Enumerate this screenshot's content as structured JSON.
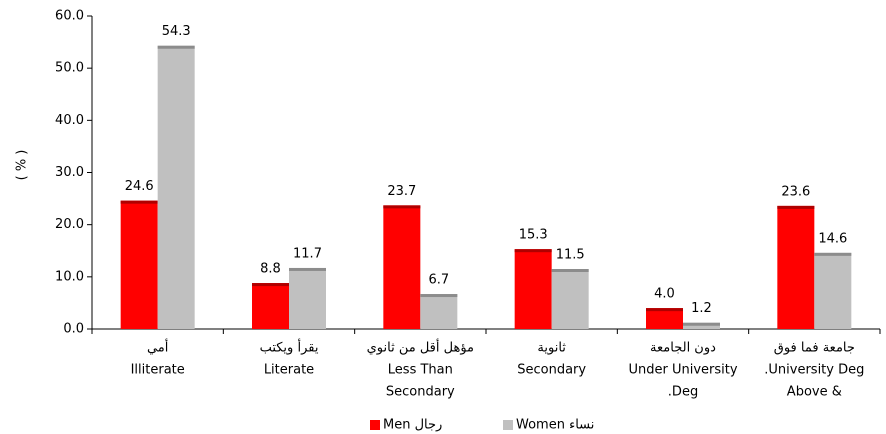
{
  "chart_data": {
    "type": "bar",
    "y_label": "( % )",
    "categories": [
      [
        "أمي",
        "Illiterate"
      ],
      [
        "يقرأ ويكتب",
        "Literate"
      ],
      [
        "مؤهل أقل من ثانوي",
        "Less Than",
        "Secondary"
      ],
      [
        "ثانوية",
        "Secondary"
      ],
      [
        "دون الجامعة",
        "Under University",
        ".Deg"
      ],
      [
        "جامعة فما فوق",
        ".University Deg",
        "Above &"
      ]
    ],
    "series": [
      {
        "name": "Men رجال",
        "color": "#ff0000",
        "top_color": "#b00000",
        "values": [
          24.6,
          8.8,
          23.7,
          15.3,
          4.0,
          23.6
        ],
        "value_labels": [
          "24.6",
          "8.8",
          "23.7",
          "15.3",
          "4.0",
          "23.6"
        ]
      },
      {
        "name": "Women نساء",
        "color": "#c0c0c0",
        "top_color": "#8c8c8c",
        "values": [
          54.3,
          11.7,
          6.7,
          11.5,
          1.2,
          14.6
        ],
        "value_labels": [
          "54.3",
          "11.7",
          "6.7",
          "11.5",
          "1.2",
          "14.6"
        ]
      }
    ],
    "ylim": [
      0,
      60
    ],
    "yticks": [
      {
        "value": 0,
        "label": "0.0"
      },
      {
        "value": 10,
        "label": "10.0"
      },
      {
        "value": 20,
        "label": "20.0"
      },
      {
        "value": 30,
        "label": "30.0"
      },
      {
        "value": 40,
        "label": "40.0"
      },
      {
        "value": 50,
        "label": "50.0"
      },
      {
        "value": 60,
        "label": "60.0"
      }
    ]
  }
}
